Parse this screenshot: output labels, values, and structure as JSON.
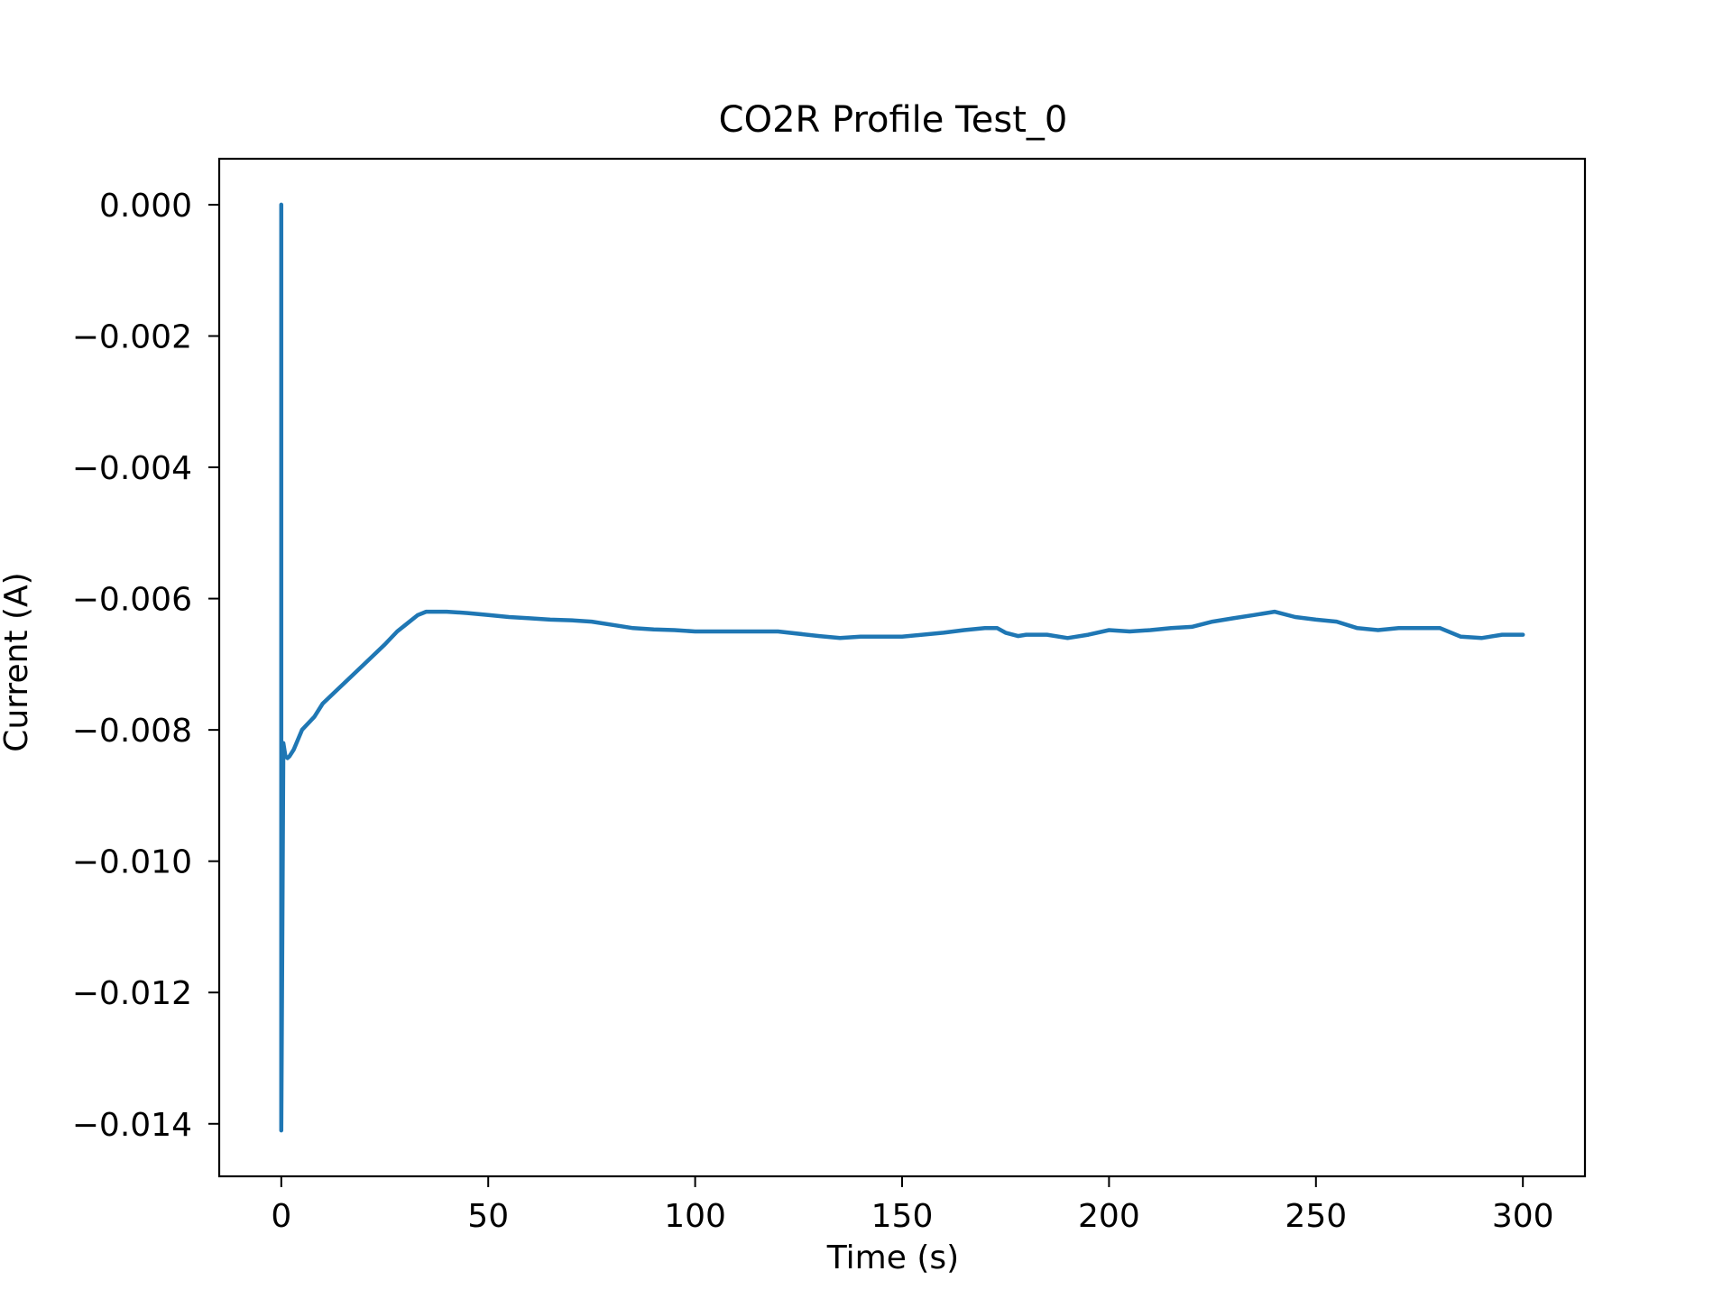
{
  "chart_data": {
    "type": "line",
    "title": "CO2R Profile Test_0",
    "xlabel": "Time (s)",
    "ylabel": "Current (A)",
    "xlim": [
      -15,
      315
    ],
    "ylim": [
      -0.0148,
      0.0007
    ],
    "xticks": [
      0,
      50,
      100,
      150,
      200,
      250,
      300
    ],
    "xtick_labels": [
      "0",
      "50",
      "100",
      "150",
      "200",
      "250",
      "300"
    ],
    "yticks": [
      0.0,
      -0.002,
      -0.004,
      -0.006,
      -0.008,
      -0.01,
      -0.012,
      -0.014
    ],
    "ytick_labels": [
      "0.000",
      "−0.002",
      "−0.004",
      "−0.006",
      "−0.008",
      "−0.010",
      "−0.012",
      "−0.014"
    ],
    "grid": false,
    "legend": "none",
    "series": [
      {
        "color": "#1f77b4",
        "x": [
          0,
          0,
          0.5,
          1,
          1.5,
          2,
          3,
          5,
          8,
          10,
          15,
          20,
          25,
          28,
          30,
          33,
          35,
          38,
          40,
          45,
          50,
          55,
          60,
          65,
          70,
          75,
          80,
          85,
          90,
          95,
          100,
          110,
          120,
          130,
          135,
          140,
          150,
          160,
          165,
          170,
          173,
          175,
          178,
          180,
          185,
          190,
          195,
          200,
          205,
          210,
          215,
          220,
          225,
          230,
          235,
          240,
          245,
          250,
          255,
          260,
          265,
          270,
          275,
          280,
          285,
          290,
          295,
          300
        ],
        "y": [
          0.0,
          -0.0141,
          -0.0082,
          -0.0084,
          -0.00843,
          -0.0084,
          -0.0083,
          -0.008,
          -0.0078,
          -0.0076,
          -0.0073,
          -0.007,
          -0.0067,
          -0.0065,
          -0.0064,
          -0.00625,
          -0.0062,
          -0.0062,
          -0.0062,
          -0.00622,
          -0.00625,
          -0.00628,
          -0.0063,
          -0.00632,
          -0.00633,
          -0.00635,
          -0.0064,
          -0.00645,
          -0.00647,
          -0.00648,
          -0.0065,
          -0.0065,
          -0.0065,
          -0.00657,
          -0.0066,
          -0.00658,
          -0.00658,
          -0.00652,
          -0.00648,
          -0.00645,
          -0.00645,
          -0.00652,
          -0.00657,
          -0.00655,
          -0.00655,
          -0.0066,
          -0.00655,
          -0.00648,
          -0.0065,
          -0.00648,
          -0.00645,
          -0.00643,
          -0.00635,
          -0.0063,
          -0.00625,
          -0.0062,
          -0.00628,
          -0.00632,
          -0.00635,
          -0.00645,
          -0.00648,
          -0.00645,
          -0.00645,
          -0.00645,
          -0.00658,
          -0.0066,
          -0.00655,
          -0.00655
        ]
      }
    ]
  }
}
